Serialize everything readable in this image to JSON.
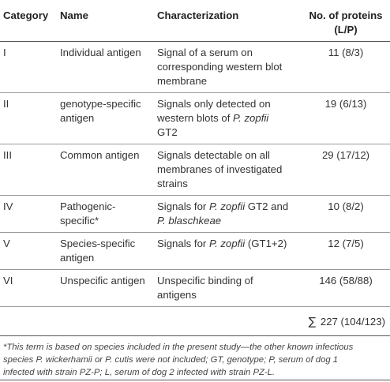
{
  "header": {
    "category": "Category",
    "name": "Name",
    "characterization": "Characterization",
    "proteins_line1": "No. of proteins",
    "proteins_line2": "(L/P)"
  },
  "rows": [
    {
      "category": "I",
      "name": [
        "Individual antigen"
      ],
      "characterization": [
        [
          "Signal of a serum on"
        ],
        [
          "corresponding western blot"
        ],
        [
          "membrane"
        ]
      ],
      "proteins": "11 (8/3)"
    },
    {
      "category": "II",
      "name": [
        "genotype-specific",
        "antigen"
      ],
      "characterization": [
        [
          "Signals only detected on"
        ],
        [
          "western blots of ",
          "P. zopfii"
        ],
        [
          "GT2"
        ]
      ],
      "proteins": "19 (6/13)"
    },
    {
      "category": "III",
      "name": [
        "Common antigen"
      ],
      "characterization": [
        [
          "Signals detectable on all"
        ],
        [
          "membranes of investigated"
        ],
        [
          "strains"
        ]
      ],
      "proteins": "29 (17/12)"
    },
    {
      "category": "IV",
      "name": [
        "Pathogenic-",
        "specific*"
      ],
      "characterization": [
        [
          "Signals for ",
          "P. zopfii",
          " GT2 and"
        ],
        [
          "",
          "P. blaschkeae"
        ]
      ],
      "proteins": "10 (8/2)"
    },
    {
      "category": "V",
      "name": [
        "Species-specific",
        "antigen"
      ],
      "characterization": [
        [
          "Signals for ",
          "P. zopfii",
          " (GT1+2)"
        ]
      ],
      "proteins": "12 (7/5)"
    },
    {
      "category": "VI",
      "name": [
        "Unspecific antigen"
      ],
      "characterization": [
        [
          "Unspecific binding of"
        ],
        [
          "antigens"
        ]
      ],
      "proteins": "146 (58/88)"
    }
  ],
  "total": {
    "symbol": "∑",
    "value": "227 (104/123)"
  },
  "footnote": [
    "*This term is based on species included in the present study—the other known infectious",
    "species P. wickerhamii or P. cutis were not included; GT, genotype; P, serum of dog 1",
    "infected with strain PZ-P; L, serum of dog 2 infected with strain PZ-L."
  ]
}
